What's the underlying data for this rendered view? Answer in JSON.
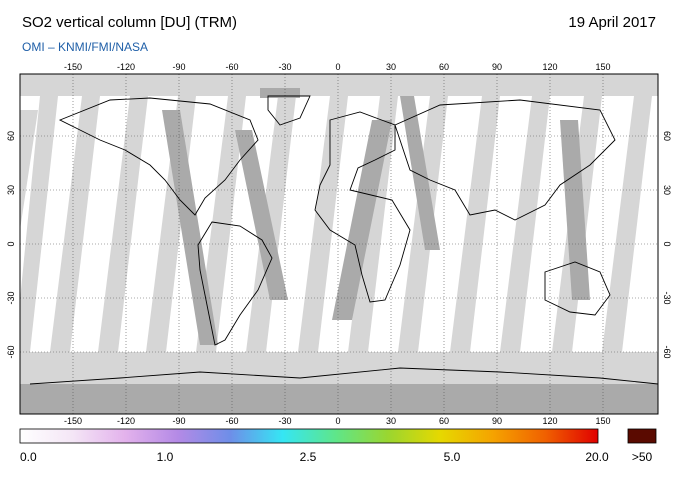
{
  "header": {
    "title": "SO2 vertical column [DU] (TRM)",
    "date": "19 April 2017",
    "credit": "OMI  –  KNMI/FMI/NASA"
  },
  "map": {
    "lon_ticks": [
      "-150",
      "-120",
      "-90",
      "-60",
      "-30",
      "0",
      "30",
      "60",
      "90",
      "120",
      "150"
    ],
    "lat_ticks_left": [
      "60",
      "30",
      "0",
      "-30",
      "-60"
    ],
    "lat_ticks_right": [
      "60",
      "30",
      "0",
      "-30",
      "-60"
    ],
    "colors": {
      "nodata": "#d6d6d6",
      "nodata_dark": "#aaaaaa",
      "coast": "#000000"
    }
  },
  "colorbar": {
    "labels": [
      "0.0",
      "1.0",
      "2.5",
      "5.0",
      "20.0",
      ">50"
    ],
    "colors": [
      "#ffffff",
      "#f4e6f6",
      "#e3b2ec",
      "#b48ae6",
      "#6e8ee8",
      "#35e6f4",
      "#5ee68a",
      "#9ad630",
      "#e6d800",
      "#f5a300",
      "#f06000",
      "#e00000",
      "#5a0a00"
    ]
  }
}
